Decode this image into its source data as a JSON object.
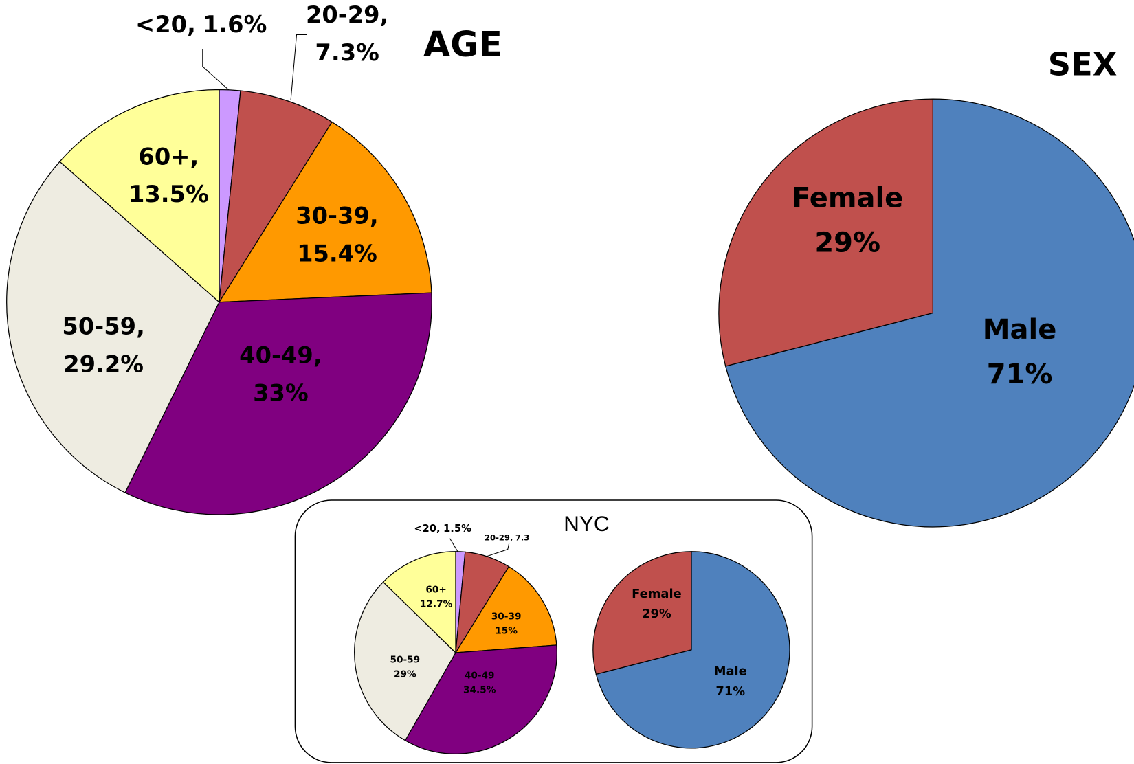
{
  "chart_data": [
    {
      "type": "pie",
      "title": "AGE",
      "categories": [
        "<20,",
        "20-29,",
        "30-39,",
        "40-49,",
        "50-59,",
        "60+,"
      ],
      "values": [
        1.6,
        7.3,
        15.4,
        33,
        29.2,
        13.5
      ],
      "value_labels": [
        "1.6%",
        "7.3%",
        "15.4%",
        "33%",
        "29.2%",
        "13.5%"
      ],
      "colors": [
        "#cc99ff",
        "#c0504d",
        "#ff9900",
        "#800080",
        "#eeece1",
        "#ffff99"
      ]
    },
    {
      "type": "pie",
      "title": "SEX",
      "categories": [
        "Male",
        "Female"
      ],
      "values": [
        71,
        29
      ],
      "value_labels": [
        "71%",
        "29%"
      ],
      "colors": [
        "#4f81bd",
        "#c0504d"
      ]
    },
    {
      "type": "pie",
      "title": "NYC",
      "categories": [
        "<20,",
        "20-29,",
        "30-39",
        "40-49",
        "50-59",
        "60+"
      ],
      "values": [
        1.5,
        7.3,
        15,
        34.5,
        29,
        12.7
      ],
      "value_labels": [
        "1.5%",
        "7.3",
        "15%",
        "34.5%",
        "29%",
        "12.7%"
      ],
      "colors": [
        "#cc99ff",
        "#c0504d",
        "#ff9900",
        "#800080",
        "#eeece1",
        "#ffff99"
      ]
    },
    {
      "type": "pie",
      "categories": [
        "Male",
        "Female"
      ],
      "values": [
        71,
        29
      ],
      "value_labels": [
        "71%",
        "29%"
      ],
      "colors": [
        "#4f81bd",
        "#c0504d"
      ]
    }
  ]
}
